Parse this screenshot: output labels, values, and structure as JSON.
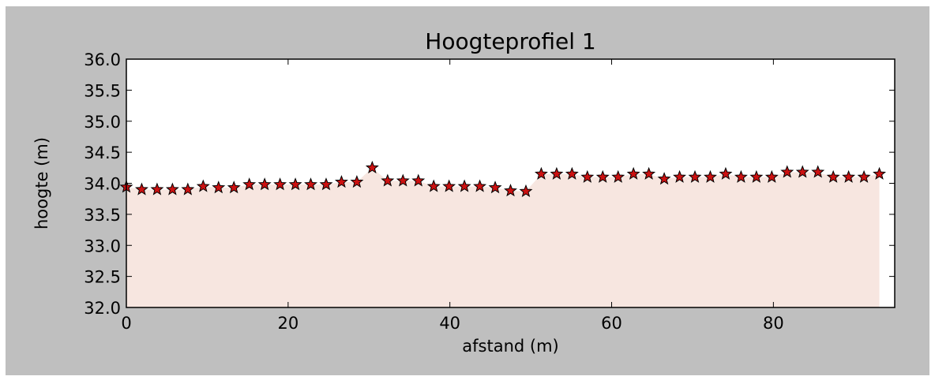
{
  "chart_data": {
    "type": "area",
    "title": "Hoogteprofiel 1",
    "xlabel": "afstand (m)",
    "ylabel": "hoogte (m)",
    "xlim": [
      0,
      95
    ],
    "ylim": [
      32.0,
      36.0
    ],
    "x_ticks": [
      0,
      20,
      40,
      60,
      80
    ],
    "x_tick_labels": [
      "0",
      "20",
      "40",
      "60",
      "80"
    ],
    "y_ticks": [
      32.0,
      32.5,
      33.0,
      33.5,
      34.0,
      34.5,
      35.0,
      35.5,
      36.0
    ],
    "y_tick_labels": [
      "32.0",
      "32.5",
      "33.0",
      "33.5",
      "34.0",
      "34.5",
      "35.0",
      "35.5",
      "36.0"
    ],
    "grid": false,
    "marker": "star",
    "colors": {
      "figure_bg": "#bfbfbf",
      "plot_bg": "#ffffff",
      "fill": "#f7e6e0",
      "marker_fill": "#cc1111",
      "marker_edge": "#000000"
    },
    "x": [
      0.0,
      1.9,
      3.8,
      5.7,
      7.6,
      9.5,
      11.4,
      13.3,
      15.2,
      17.1,
      19.0,
      20.9,
      22.8,
      24.7,
      26.6,
      28.5,
      30.4,
      32.3,
      34.2,
      36.1,
      38.0,
      39.9,
      41.8,
      43.7,
      45.6,
      47.5,
      49.4,
      51.3,
      53.2,
      55.1,
      57.0,
      58.9,
      60.8,
      62.7,
      64.6,
      66.5,
      68.4,
      70.3,
      72.2,
      74.1,
      76.0,
      77.9,
      79.8,
      81.7,
      83.6,
      85.5,
      87.4,
      89.3,
      91.2,
      93.1
    ],
    "y": [
      33.94,
      33.9,
      33.9,
      33.9,
      33.9,
      33.95,
      33.93,
      33.93,
      33.98,
      33.98,
      33.98,
      33.98,
      33.98,
      33.98,
      34.02,
      34.02,
      34.25,
      34.04,
      34.04,
      34.04,
      33.95,
      33.95,
      33.95,
      33.95,
      33.93,
      33.88,
      33.87,
      34.15,
      34.15,
      34.15,
      34.1,
      34.1,
      34.1,
      34.15,
      34.15,
      34.07,
      34.1,
      34.1,
      34.1,
      34.15,
      34.1,
      34.1,
      34.1,
      34.18,
      34.18,
      34.18,
      34.1,
      34.1,
      34.1,
      34.15
    ]
  }
}
